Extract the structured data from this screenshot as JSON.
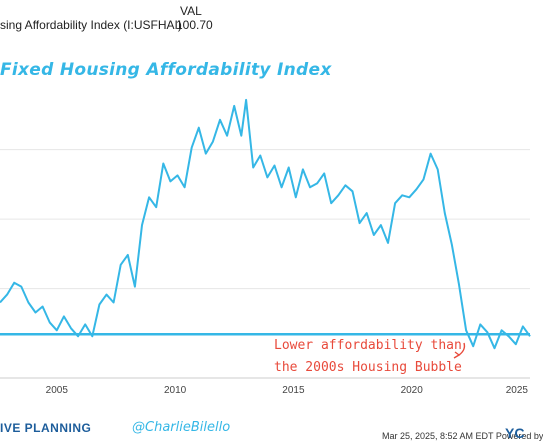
{
  "header": {
    "col_label": "VAL",
    "series_name": "sing Affordability Index (I:USFHAI)",
    "series_value": "100.70"
  },
  "annotation": {
    "line1": "Lower affordability than",
    "line2": "the 2000s Housing Bubble"
  },
  "footer": {
    "brand": "IVE PLANNING",
    "handle": "@CharlieBilello",
    "date": "Mar 25, 2025, 8:52 AM EDT Powered by",
    "logo": "YC"
  },
  "colors": {
    "line": "#35b7e6",
    "annotation": "#e84a3b",
    "grid": "#e6e6e6"
  },
  "chart_data": {
    "type": "line",
    "title": "Fixed Housing Affordability Index",
    "x_ticks": [
      "2005",
      "2010",
      "2015",
      "2020",
      "2025"
    ],
    "xlim": [
      2002.6,
      2025.0
    ],
    "ylim": [
      80,
      225
    ],
    "y_range_note": "axis values not printed",
    "reference_line": {
      "y": 102
    },
    "series": [
      {
        "x": [
          2002.6,
          2002.9,
          2003.2,
          2003.5,
          2003.8,
          2004.1,
          2004.4,
          2004.7,
          2005.0,
          2005.3,
          2005.6,
          2005.9,
          2006.2,
          2006.5,
          2006.8,
          2007.1,
          2007.4,
          2007.7,
          2008.0,
          2008.3,
          2008.6,
          2008.9,
          2009.2,
          2009.5,
          2009.8,
          2010.1,
          2010.4,
          2010.7,
          2011.0,
          2011.3,
          2011.6,
          2011.9,
          2012.2,
          2012.5,
          2012.8,
          2013.0,
          2013.3,
          2013.6,
          2013.9,
          2014.2,
          2014.5,
          2014.8,
          2015.1,
          2015.4,
          2015.7,
          2016.0,
          2016.3,
          2016.6,
          2016.9,
          2017.2,
          2017.5,
          2017.8,
          2018.1,
          2018.4,
          2018.7,
          2019.0,
          2019.3,
          2019.6,
          2019.9,
          2020.2,
          2020.5,
          2020.8,
          2021.1,
          2021.4,
          2021.7,
          2022.0,
          2022.3,
          2022.6,
          2022.9,
          2023.2,
          2023.5,
          2023.8,
          2024.1,
          2024.4,
          2024.7,
          2025.0
        ],
        "values": [
          118,
          122,
          128,
          126,
          118,
          113,
          116,
          108,
          104,
          111,
          105,
          101,
          107,
          101,
          117,
          122,
          118,
          137,
          142,
          126,
          157,
          171,
          166,
          188,
          179,
          182,
          176,
          196,
          206,
          193,
          199,
          210,
          202,
          217,
          202,
          220,
          186,
          192,
          181,
          187,
          176,
          186,
          171,
          185,
          176,
          178,
          183,
          168,
          172,
          177,
          174,
          158,
          163,
          152,
          157,
          148,
          168,
          172,
          171,
          175,
          180,
          193,
          185,
          163,
          147,
          127,
          104,
          96,
          107,
          103,
          95,
          104,
          101,
          97,
          106,
          101
        ]
      }
    ]
  }
}
